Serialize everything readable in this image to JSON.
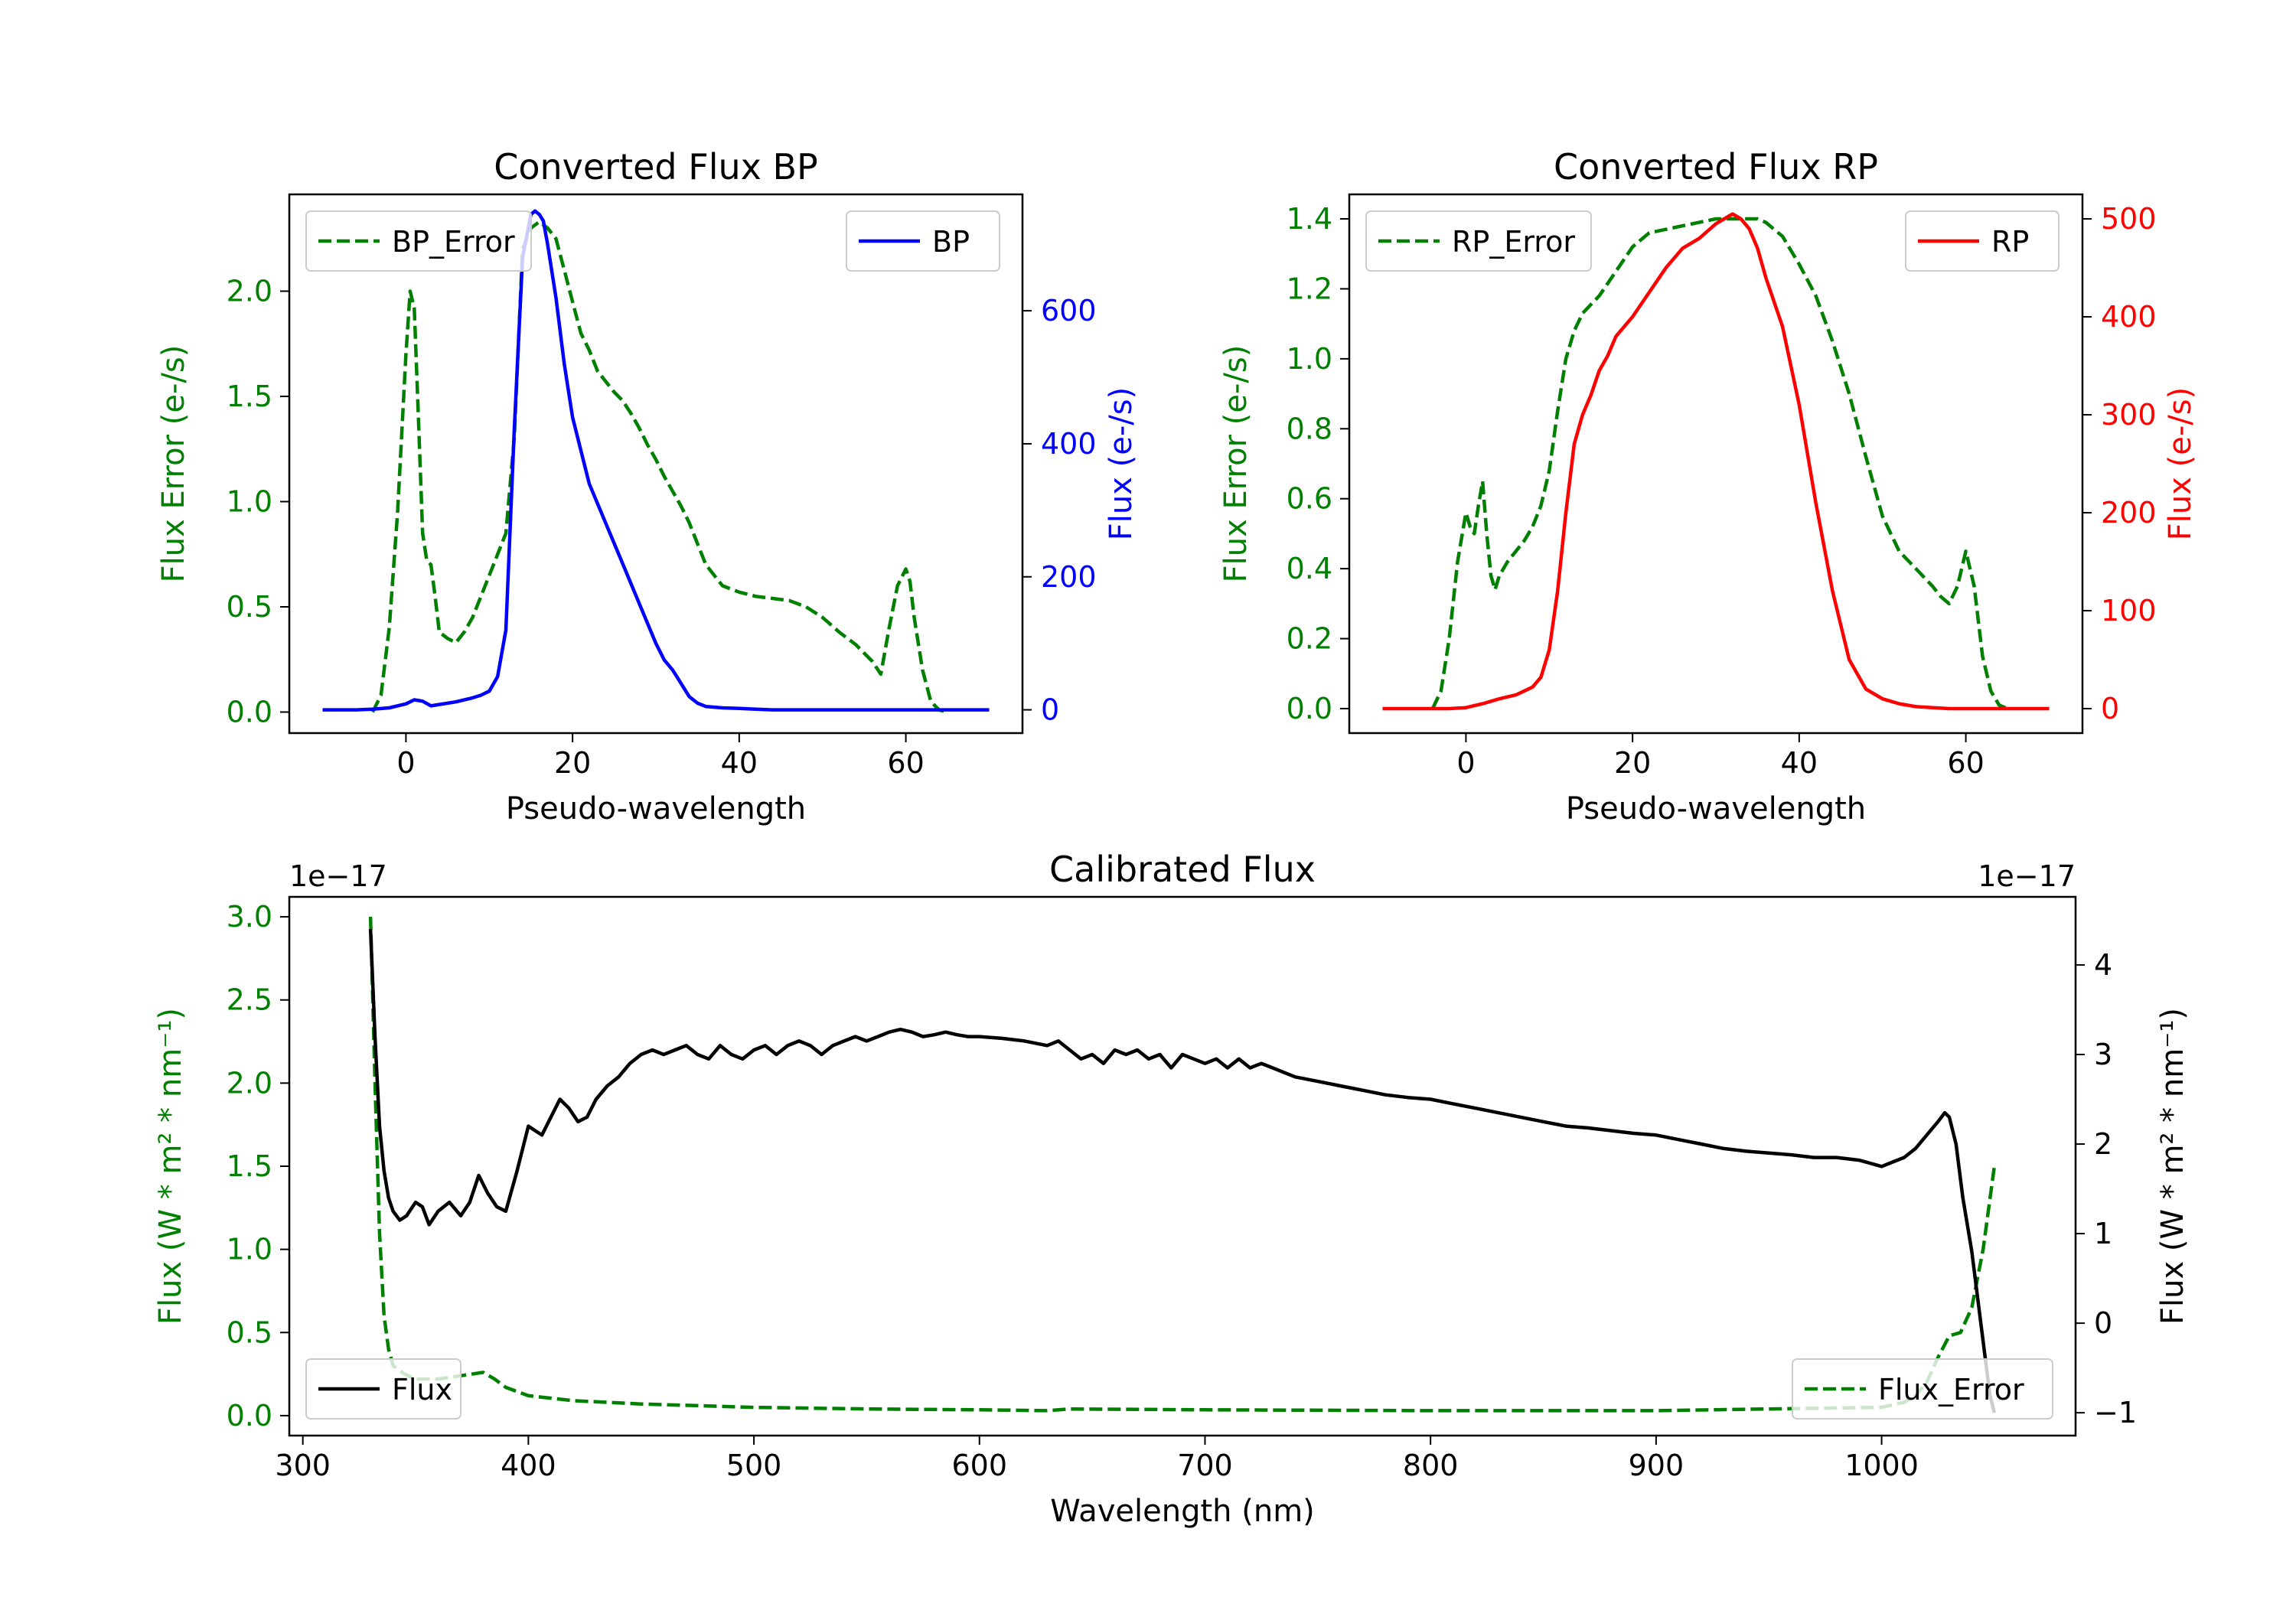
{
  "chart_data": [
    {
      "id": "bp",
      "type": "line",
      "title": "Converted Flux BP",
      "xlabel": "Pseudo-wavelength",
      "ylabel_left": "Flux Error (e-/s)",
      "ylabel_right": "Flux (e-/s)",
      "xlim": [
        -14,
        74
      ],
      "ylim_left": [
        -0.1,
        2.46
      ],
      "ylim_right": [
        -35,
        775
      ],
      "xticks": [
        "0",
        "20",
        "40",
        "60"
      ],
      "xtick_values": [
        0,
        20,
        40,
        60
      ],
      "yticks_left": [
        "0.0",
        "0.5",
        "1.0",
        "1.5",
        "2.0"
      ],
      "ytick_values_left": [
        0,
        0.5,
        1.0,
        1.5,
        2.0
      ],
      "yticks_right": [
        "0",
        "200",
        "400",
        "600"
      ],
      "ytick_values_right": [
        0,
        200,
        400,
        600
      ],
      "left_color": "#008000",
      "right_color": "#0000ff",
      "legend_left": "BP_Error",
      "legend_right": "BP",
      "series": [
        {
          "name": "BP_Error",
          "axis": "left",
          "style": "dashed",
          "color": "#008000",
          "x": [
            -4,
            -3,
            -2,
            -1,
            0,
            0.5,
            1,
            1.5,
            2,
            2.5,
            3,
            3.5,
            4,
            5,
            6,
            7,
            8,
            9,
            10,
            11,
            12,
            13,
            14,
            15,
            16,
            17,
            18,
            19,
            20,
            21,
            22,
            23,
            24,
            25,
            26,
            27,
            28,
            29,
            30,
            31,
            32,
            33,
            34,
            35,
            36,
            38,
            40,
            42,
            44,
            46,
            48,
            50,
            52,
            54,
            56,
            57,
            58,
            59,
            60,
            60.5,
            61,
            62,
            63,
            64,
            65
          ],
          "values": [
            0.0,
            0.08,
            0.4,
            0.95,
            1.7,
            2.0,
            1.92,
            1.4,
            0.85,
            0.72,
            0.7,
            0.55,
            0.38,
            0.35,
            0.33,
            0.38,
            0.45,
            0.55,
            0.65,
            0.75,
            0.85,
            1.3,
            2.2,
            2.3,
            2.33,
            2.3,
            2.25,
            2.1,
            1.95,
            1.8,
            1.72,
            1.62,
            1.57,
            1.52,
            1.48,
            1.42,
            1.35,
            1.27,
            1.2,
            1.12,
            1.05,
            0.98,
            0.9,
            0.8,
            0.7,
            0.6,
            0.57,
            0.55,
            0.54,
            0.53,
            0.5,
            0.45,
            0.38,
            0.32,
            0.24,
            0.18,
            0.4,
            0.6,
            0.68,
            0.62,
            0.45,
            0.2,
            0.05,
            0.01,
            0.0
          ]
        },
        {
          "name": "BP",
          "axis": "right",
          "style": "solid",
          "color": "#0000ff",
          "x": [
            -10,
            -6,
            -4,
            -2,
            0,
            1,
            2,
            3,
            4,
            6,
            8,
            9,
            10,
            11,
            12,
            13,
            14,
            15,
            15.5,
            16,
            16.5,
            17,
            18,
            19,
            20,
            22,
            24,
            26,
            28,
            30,
            31,
            32,
            33,
            34,
            35,
            36,
            38,
            40,
            42,
            44,
            46,
            48,
            50,
            54,
            58,
            62,
            66,
            70
          ],
          "values": [
            0,
            0,
            1,
            3,
            9,
            15,
            13,
            6,
            8,
            12,
            18,
            22,
            28,
            50,
            120,
            420,
            680,
            745,
            750,
            745,
            735,
            700,
            620,
            520,
            440,
            340,
            280,
            220,
            160,
            100,
            75,
            60,
            40,
            20,
            10,
            5,
            3,
            2,
            1,
            0,
            0,
            0,
            0,
            0,
            0,
            0,
            0,
            0
          ]
        }
      ]
    },
    {
      "id": "rp",
      "type": "line",
      "title": "Converted Flux RP",
      "xlabel": "Pseudo-wavelength",
      "ylabel_left": "Flux Error (e-/s)",
      "ylabel_right": "Flux (e-/s)",
      "xlim": [
        -14,
        74
      ],
      "ylim_left": [
        -0.07,
        1.47
      ],
      "ylim_right": [
        -25,
        525
      ],
      "xticks": [
        "0",
        "20",
        "40",
        "60"
      ],
      "xtick_values": [
        0,
        20,
        40,
        60
      ],
      "yticks_left": [
        "0.0",
        "0.2",
        "0.4",
        "0.6",
        "0.8",
        "1.0",
        "1.2",
        "1.4"
      ],
      "ytick_values_left": [
        0,
        0.2,
        0.4,
        0.6,
        0.8,
        1.0,
        1.2,
        1.4
      ],
      "yticks_right": [
        "0",
        "100",
        "200",
        "300",
        "400",
        "500"
      ],
      "ytick_values_right": [
        0,
        100,
        200,
        300,
        400,
        500
      ],
      "left_color": "#008000",
      "right_color": "#ff0000",
      "legend_left": "RP_Error",
      "legend_right": "RP",
      "series": [
        {
          "name": "RP_Error",
          "axis": "left",
          "style": "dashed",
          "color": "#008000",
          "x": [
            -4,
            -3,
            -2,
            -1,
            0,
            0.5,
            1,
            1.5,
            2,
            2.5,
            3,
            3.5,
            4,
            5,
            6,
            7,
            8,
            9,
            10,
            11,
            12,
            13,
            14,
            16,
            18,
            20,
            22,
            24,
            26,
            28,
            30,
            32,
            34,
            35,
            36,
            38,
            40,
            42,
            44,
            46,
            48,
            50,
            52,
            54,
            56,
            57,
            58,
            59,
            60,
            61,
            62,
            63,
            64,
            65
          ],
          "values": [
            0.0,
            0.05,
            0.2,
            0.42,
            0.56,
            0.52,
            0.5,
            0.58,
            0.65,
            0.5,
            0.38,
            0.34,
            0.38,
            0.42,
            0.45,
            0.48,
            0.52,
            0.58,
            0.68,
            0.85,
            1.0,
            1.08,
            1.13,
            1.18,
            1.25,
            1.32,
            1.36,
            1.37,
            1.38,
            1.39,
            1.4,
            1.4,
            1.4,
            1.4,
            1.39,
            1.35,
            1.27,
            1.18,
            1.05,
            0.9,
            0.72,
            0.55,
            0.45,
            0.4,
            0.35,
            0.32,
            0.3,
            0.35,
            0.45,
            0.35,
            0.15,
            0.05,
            0.01,
            0.0
          ]
        },
        {
          "name": "RP",
          "axis": "right",
          "style": "solid",
          "color": "#ff0000",
          "x": [
            -10,
            -4,
            -2,
            0,
            2,
            4,
            6,
            8,
            9,
            10,
            11,
            12,
            13,
            14,
            15,
            16,
            17,
            18,
            20,
            22,
            24,
            26,
            28,
            30,
            31,
            32,
            33,
            34,
            35,
            36,
            38,
            40,
            42,
            44,
            46,
            48,
            50,
            52,
            54,
            56,
            58,
            60,
            65,
            70
          ],
          "values": [
            0,
            0,
            0,
            1,
            5,
            10,
            14,
            22,
            32,
            60,
            120,
            200,
            270,
            300,
            320,
            345,
            360,
            380,
            400,
            425,
            450,
            470,
            480,
            495,
            500,
            505,
            500,
            490,
            470,
            440,
            390,
            310,
            210,
            120,
            50,
            20,
            10,
            5,
            2,
            1,
            0,
            0,
            0,
            0
          ]
        }
      ]
    },
    {
      "id": "cal",
      "type": "line",
      "title": "Calibrated Flux",
      "xlabel": "Wavelength (nm)",
      "ylabel_left": "Flux (W * m² * nm⁻¹)",
      "ylabel_right": "Flux (W * m² * nm⁻¹)",
      "offset_left": "1e−17",
      "offset_right": "1e−17",
      "xlim": [
        294,
        1086
      ],
      "ylim_left": [
        -0.12,
        3.12
      ],
      "ylim_right": [
        -1.255,
        4.76
      ],
      "xticks": [
        "300",
        "400",
        "500",
        "600",
        "700",
        "800",
        "900",
        "1000"
      ],
      "xtick_values": [
        300,
        400,
        500,
        600,
        700,
        800,
        900,
        1000
      ],
      "yticks_left": [
        "0.0",
        "0.5",
        "1.0",
        "1.5",
        "2.0",
        "2.5",
        "3.0"
      ],
      "ytick_values_left": [
        0,
        0.5,
        1.0,
        1.5,
        2.0,
        2.5,
        3.0
      ],
      "yticks_right": [
        "−1",
        "0",
        "1",
        "2",
        "3",
        "4"
      ],
      "ytick_values_right": [
        -1,
        0,
        1,
        2,
        3,
        4
      ],
      "left_color": "#008000",
      "right_color": "#000000",
      "legend_left": "Flux",
      "legend_right": "Flux_Error",
      "series": [
        {
          "name": "Flux_Error",
          "axis": "left",
          "style": "dashed",
          "color": "#008000",
          "x": [
            330,
            332,
            334,
            336,
            338,
            340,
            345,
            350,
            360,
            370,
            380,
            385,
            390,
            400,
            420,
            450,
            500,
            550,
            600,
            630,
            640,
            700,
            800,
            900,
            950,
            1000,
            1010,
            1015,
            1020,
            1025,
            1030,
            1035,
            1040,
            1045,
            1050
          ],
          "values": [
            3.0,
            2.0,
            1.1,
            0.6,
            0.4,
            0.3,
            0.25,
            0.22,
            0.22,
            0.24,
            0.26,
            0.22,
            0.17,
            0.12,
            0.09,
            0.07,
            0.05,
            0.04,
            0.035,
            0.03,
            0.04,
            0.035,
            0.03,
            0.03,
            0.04,
            0.05,
            0.08,
            0.12,
            0.2,
            0.35,
            0.48,
            0.5,
            0.65,
            1.0,
            1.5
          ]
        },
        {
          "name": "Flux",
          "axis": "right",
          "style": "solid",
          "color": "#000000",
          "x": [
            330,
            332,
            334,
            336,
            338,
            340,
            343,
            346,
            350,
            353,
            356,
            360,
            365,
            370,
            374,
            378,
            382,
            386,
            390,
            395,
            400,
            403,
            406,
            410,
            414,
            418,
            422,
            426,
            430,
            435,
            440,
            445,
            450,
            455,
            460,
            465,
            470,
            475,
            480,
            485,
            490,
            495,
            500,
            505,
            510,
            515,
            520,
            525,
            530,
            535,
            540,
            545,
            550,
            555,
            560,
            565,
            570,
            575,
            580,
            585,
            590,
            595,
            600,
            610,
            620,
            630,
            635,
            640,
            645,
            650,
            655,
            660,
            665,
            670,
            675,
            680,
            685,
            690,
            695,
            700,
            705,
            710,
            715,
            720,
            725,
            730,
            740,
            750,
            760,
            770,
            780,
            790,
            800,
            810,
            820,
            830,
            840,
            850,
            860,
            870,
            880,
            890,
            900,
            910,
            920,
            930,
            940,
            950,
            960,
            970,
            980,
            990,
            1000,
            1005,
            1010,
            1015,
            1020,
            1025,
            1028,
            1030,
            1033,
            1036,
            1040,
            1044,
            1048,
            1050
          ],
          "values": [
            4.4,
            3.2,
            2.2,
            1.7,
            1.4,
            1.25,
            1.15,
            1.2,
            1.35,
            1.3,
            1.1,
            1.25,
            1.35,
            1.2,
            1.35,
            1.65,
            1.45,
            1.3,
            1.25,
            1.7,
            2.2,
            2.15,
            2.1,
            2.3,
            2.5,
            2.4,
            2.25,
            2.3,
            2.5,
            2.65,
            2.75,
            2.9,
            3.0,
            3.05,
            3.0,
            3.05,
            3.1,
            3.0,
            2.95,
            3.1,
            3.0,
            2.95,
            3.05,
            3.1,
            3.0,
            3.1,
            3.15,
            3.1,
            3.0,
            3.1,
            3.15,
            3.2,
            3.15,
            3.2,
            3.25,
            3.28,
            3.25,
            3.2,
            3.22,
            3.25,
            3.22,
            3.2,
            3.2,
            3.18,
            3.15,
            3.1,
            3.15,
            3.05,
            2.95,
            3.0,
            2.9,
            3.05,
            3.0,
            3.05,
            2.95,
            3.0,
            2.85,
            3.0,
            2.95,
            2.9,
            2.95,
            2.85,
            2.95,
            2.85,
            2.9,
            2.85,
            2.75,
            2.7,
            2.65,
            2.6,
            2.55,
            2.52,
            2.5,
            2.45,
            2.4,
            2.35,
            2.3,
            2.25,
            2.2,
            2.18,
            2.15,
            2.12,
            2.1,
            2.05,
            2.0,
            1.95,
            1.92,
            1.9,
            1.88,
            1.85,
            1.85,
            1.82,
            1.75,
            1.8,
            1.85,
            1.95,
            2.1,
            2.25,
            2.35,
            2.3,
            2.0,
            1.4,
            0.8,
            0.0,
            -0.8,
            -1.0
          ]
        }
      ]
    }
  ]
}
